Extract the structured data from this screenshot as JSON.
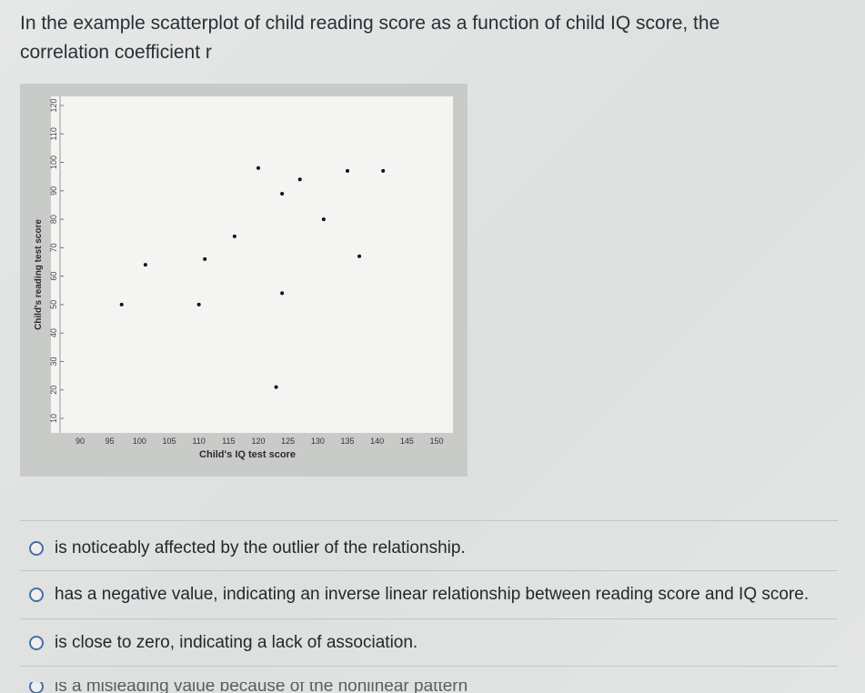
{
  "question": {
    "line1": "In the example scatterplot of child reading score as a function of child IQ score, the",
    "line2": "correlation coefficient r"
  },
  "chart_data": {
    "type": "scatter",
    "xlabel": "Child's IQ test score",
    "ylabel": "Child's reading test score",
    "xlim": [
      90,
      150
    ],
    "ylim": [
      10,
      120
    ],
    "x_ticks": [
      "90",
      "95",
      "100",
      "105",
      "110",
      "115",
      "120",
      "125",
      "130",
      "135",
      "140",
      "145",
      "150"
    ],
    "y_ticks": [
      "10",
      "20",
      "30",
      "40",
      "50",
      "60",
      "70",
      "80",
      "90",
      "100",
      "110",
      "120"
    ],
    "grid": false,
    "points": [
      {
        "x": 97,
        "y": 50
      },
      {
        "x": 101,
        "y": 64
      },
      {
        "x": 110,
        "y": 50
      },
      {
        "x": 111,
        "y": 66
      },
      {
        "x": 116,
        "y": 74
      },
      {
        "x": 120,
        "y": 98
      },
      {
        "x": 124,
        "y": 54
      },
      {
        "x": 123,
        "y": 21
      },
      {
        "x": 124,
        "y": 89
      },
      {
        "x": 127,
        "y": 94
      },
      {
        "x": 131,
        "y": 80
      },
      {
        "x": 135,
        "y": 97
      },
      {
        "x": 137,
        "y": 67
      },
      {
        "x": 141,
        "y": 97
      }
    ]
  },
  "options": [
    {
      "label": "is noticeably affected by the outlier of the relationship."
    },
    {
      "label": "has a negative value, indicating an inverse linear relationship between reading score and IQ score."
    },
    {
      "label": "is close to zero, indicating a lack of association."
    },
    {
      "label": "is a misleading value because of the nonlinear pattern"
    }
  ]
}
